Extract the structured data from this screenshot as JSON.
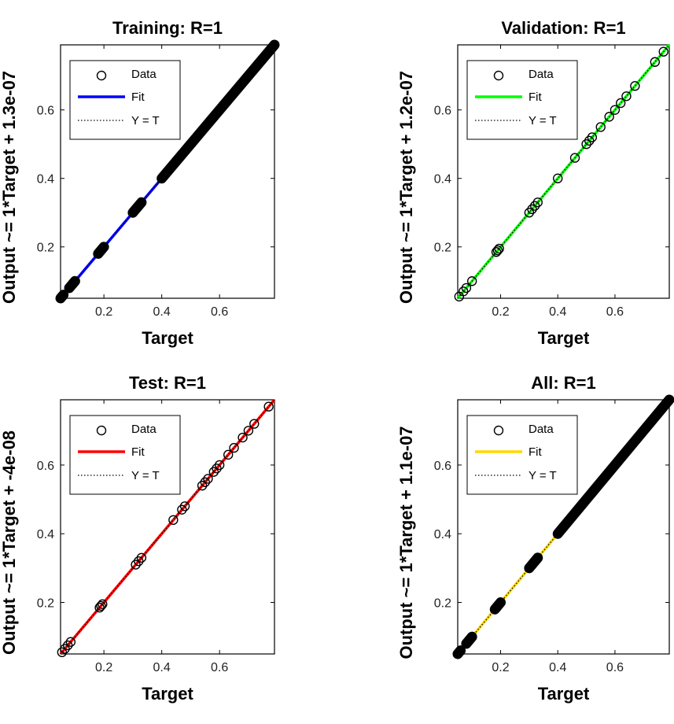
{
  "chart_data": [
    {
      "type": "scatter",
      "title": "Training: R=1",
      "xlabel": "Target",
      "ylabel": "Output ~= 1*Target + 1.3e-07",
      "xlim": [
        0.05,
        0.79
      ],
      "ylim": [
        0.05,
        0.79
      ],
      "xticks": [
        "0.2",
        "0.4",
        "0.6"
      ],
      "yticks": [
        "0.2",
        "0.4",
        "0.6"
      ],
      "fit_color": "#0000ff",
      "fit_slope": 1,
      "fit_intercept": 1.3e-07,
      "legend": [
        "Data",
        "Fit",
        "Y = T"
      ],
      "legend_position": "top-left",
      "data_segments": [
        [
          0.05,
          0.06
        ],
        [
          0.08,
          0.1
        ],
        [
          0.18,
          0.2
        ],
        [
          0.3,
          0.33
        ],
        [
          0.4,
          0.79
        ]
      ],
      "x": [
        0.45,
        0.5,
        0.55,
        0.6,
        0.65,
        0.7,
        0.75,
        0.79
      ],
      "y": [
        0.45,
        0.5,
        0.55,
        0.6,
        0.65,
        0.7,
        0.75,
        0.79
      ]
    },
    {
      "type": "scatter",
      "title": "Validation: R=1",
      "xlabel": "Target",
      "ylabel": "Output ~= 1*Target + 1.2e-07",
      "xlim": [
        0.05,
        0.79
      ],
      "ylim": [
        0.05,
        0.79
      ],
      "xticks": [
        "0.2",
        "0.4",
        "0.6"
      ],
      "yticks": [
        "0.2",
        "0.4",
        "0.6"
      ],
      "fit_color": "#00ff00",
      "fit_slope": 1,
      "fit_intercept": 1.2e-07,
      "legend": [
        "Data",
        "Fit",
        "Y = T"
      ],
      "legend_position": "top-left",
      "data_segments": [],
      "x": [
        0.055,
        0.07,
        0.08,
        0.1,
        0.185,
        0.19,
        0.195,
        0.3,
        0.31,
        0.32,
        0.33,
        0.4,
        0.46,
        0.5,
        0.51,
        0.52,
        0.55,
        0.58,
        0.6,
        0.62,
        0.64,
        0.67,
        0.74,
        0.77
      ],
      "y": [
        0.055,
        0.07,
        0.08,
        0.1,
        0.185,
        0.19,
        0.195,
        0.3,
        0.31,
        0.32,
        0.33,
        0.4,
        0.46,
        0.5,
        0.51,
        0.52,
        0.55,
        0.58,
        0.6,
        0.62,
        0.64,
        0.67,
        0.74,
        0.77
      ]
    },
    {
      "type": "scatter",
      "title": "Test: R=1",
      "xlabel": "Target",
      "ylabel": "Output ~= 1*Target + -4e-08",
      "xlim": [
        0.05,
        0.79
      ],
      "ylim": [
        0.05,
        0.79
      ],
      "xticks": [
        "0.2",
        "0.4",
        "0.6"
      ],
      "yticks": [
        "0.2",
        "0.4",
        "0.6"
      ],
      "fit_color": "#ff0000",
      "fit_slope": 1,
      "fit_intercept": -4e-08,
      "legend": [
        "Data",
        "Fit",
        "Y = T"
      ],
      "legend_position": "top-left",
      "data_segments": [],
      "x": [
        0.055,
        0.065,
        0.075,
        0.085,
        0.185,
        0.19,
        0.195,
        0.31,
        0.32,
        0.33,
        0.44,
        0.47,
        0.48,
        0.54,
        0.55,
        0.56,
        0.58,
        0.59,
        0.6,
        0.63,
        0.65,
        0.68,
        0.7,
        0.72,
        0.77
      ],
      "y": [
        0.055,
        0.065,
        0.075,
        0.085,
        0.185,
        0.19,
        0.195,
        0.31,
        0.32,
        0.33,
        0.44,
        0.47,
        0.48,
        0.54,
        0.55,
        0.56,
        0.58,
        0.59,
        0.6,
        0.63,
        0.65,
        0.68,
        0.7,
        0.72,
        0.77
      ]
    },
    {
      "type": "scatter",
      "title": "All: R=1",
      "xlabel": "Target",
      "ylabel": "Output ~= 1*Target + 1.1e-07",
      "xlim": [
        0.05,
        0.79
      ],
      "ylim": [
        0.05,
        0.79
      ],
      "xticks": [
        "0.2",
        "0.4",
        "0.6"
      ],
      "yticks": [
        "0.2",
        "0.4",
        "0.6"
      ],
      "fit_color": "#ffd700",
      "fit_slope": 1,
      "fit_intercept": 1.1e-07,
      "legend": [
        "Data",
        "Fit",
        "Y = T"
      ],
      "legend_position": "top-left",
      "data_segments": [
        [
          0.05,
          0.06
        ],
        [
          0.08,
          0.1
        ],
        [
          0.18,
          0.2
        ],
        [
          0.3,
          0.33
        ],
        [
          0.4,
          0.79
        ]
      ],
      "x": [],
      "y": []
    }
  ]
}
